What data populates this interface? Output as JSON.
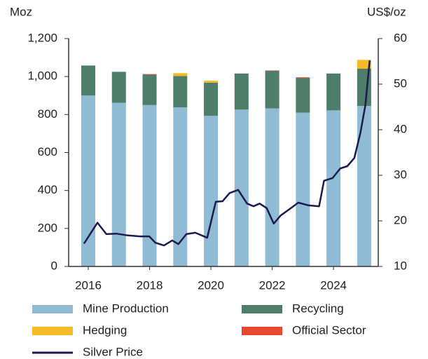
{
  "chart_data": {
    "type": "bar",
    "ylabel": "Moz",
    "y2label": "US$/oz",
    "xlim": [
      2015.36,
      2025.46
    ],
    "xticks": [
      2016,
      2018,
      2020,
      2022,
      2024
    ],
    "ylim": [
      0,
      1200
    ],
    "yticks": [
      0,
      200,
      400,
      600,
      800,
      {
        "value": 1000,
        "label": "1,000"
      },
      {
        "value": 1200,
        "label": "1,200"
      }
    ],
    "y2lim": [
      10,
      60
    ],
    "y2ticks": [
      10,
      20,
      30,
      40,
      50,
      60
    ],
    "x": [
      2016,
      2017,
      2018,
      2019,
      2020,
      2021,
      2022,
      2023,
      2024,
      2025
    ],
    "series": [
      {
        "name": "Mine Production",
        "color": "#8fbcd4",
        "values": [
          900,
          862,
          850,
          838,
          793,
          826,
          832,
          810,
          822,
          845
        ]
      },
      {
        "name": "Recycling",
        "color": "#4e7d6a",
        "values": [
          158,
          163,
          160,
          165,
          175,
          190,
          198,
          183,
          194,
          197
        ]
      },
      {
        "name": "Hedging",
        "color": "#f7b924",
        "values": [
          0,
          0,
          0,
          15,
          10,
          0,
          0,
          0,
          0,
          46
        ]
      },
      {
        "name": "Official Sector",
        "color": "#e8472b",
        "values": [
          0,
          0,
          3,
          0,
          0,
          0,
          2,
          3,
          0,
          0
        ]
      }
    ],
    "lines": [
      {
        "name": "Silver Price",
        "color": "#1c1a4e",
        "axis": "y2",
        "x": [
          2015.86,
          2016.3,
          2016.59,
          2016.91,
          2017.3,
          2017.69,
          2017.99,
          2018.19,
          2018.47,
          2018.74,
          2018.94,
          2019.2,
          2019.49,
          2019.88,
          2020.16,
          2020.38,
          2020.61,
          2020.89,
          2021.18,
          2021.39,
          2021.59,
          2021.82,
          2022.05,
          2022.28,
          2022.55,
          2022.85,
          2023.19,
          2023.53,
          2023.69,
          2023.97,
          2024.22,
          2024.45,
          2024.68,
          2024.88,
          2025.04,
          2025.18
        ],
        "values": [
          15,
          19.6,
          17.1,
          17.2,
          16.8,
          16.6,
          16.6,
          15.2,
          14.6,
          15.7,
          14.9,
          17.1,
          17.4,
          16.3,
          24.2,
          24.3,
          26.1,
          26.8,
          23.8,
          23.2,
          23.8,
          22.8,
          19.4,
          21.2,
          22.5,
          24,
          23.4,
          23.2,
          28.8,
          29.4,
          31.5,
          32,
          33.8,
          39.4,
          45.4,
          55.2
        ]
      }
    ]
  }
}
